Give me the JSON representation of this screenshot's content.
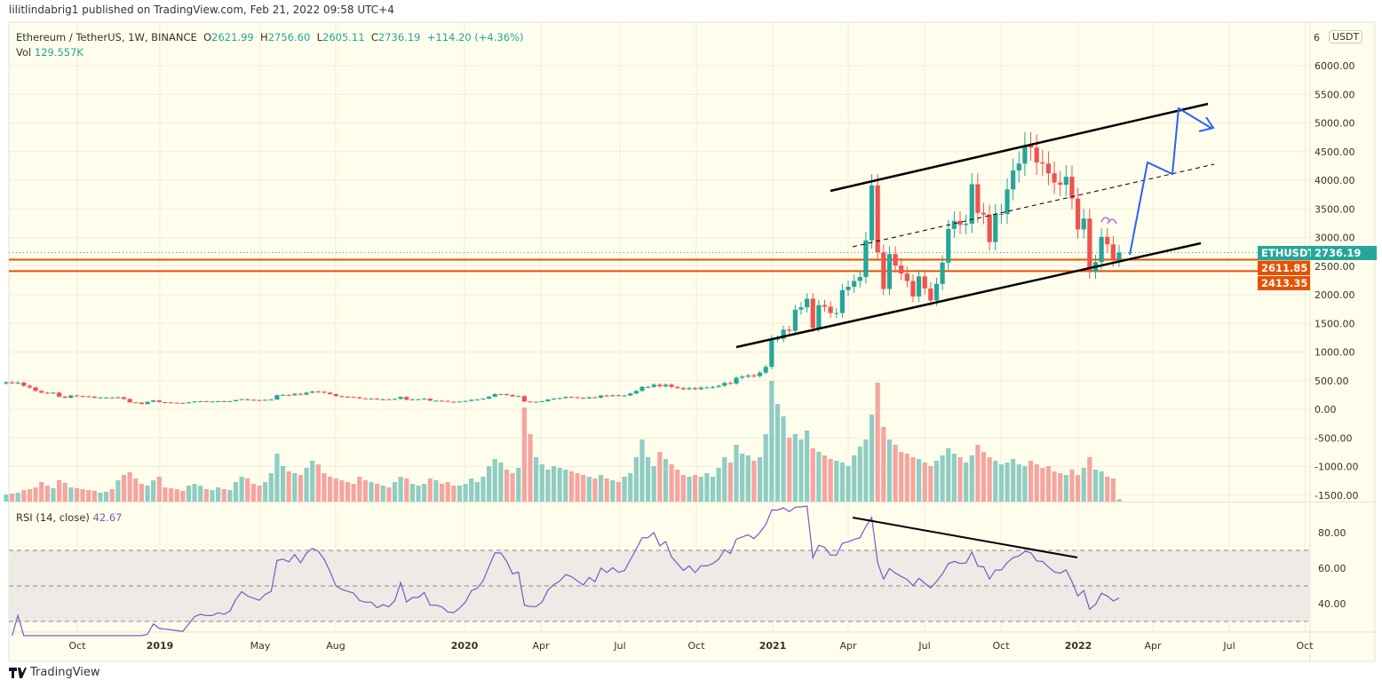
{
  "publish_line": "lilitlindabrig1 published on TradingView.com, Feb 21, 2022 09:58 UTC+4",
  "legend": {
    "symbol": "Ethereum / TetherUS, 1W, BINANCE",
    "open_label": "O",
    "open": "2621.99",
    "high_label": "H",
    "high": "2756.60",
    "low_label": "L",
    "low": "2605.11",
    "close_label": "C",
    "close": "2736.19",
    "change": "+114.20 (+4.36%)",
    "vol_label": "Vol",
    "vol": "129.557K"
  },
  "rsi_legend": {
    "label": "RSI (14, close)",
    "value": "42.67"
  },
  "currency_badge": "USDT",
  "price_axis_top_partial": "6",
  "badges": {
    "symbol": "ETHUSDT",
    "last_price": "2736.19",
    "level1": "2611.85",
    "level2": "2413.35"
  },
  "footer_logo": "TradingView",
  "colors": {
    "up": "#26a69a",
    "down": "#ef5350",
    "up_vol": "#8fcdc4",
    "down_vol": "#f5a5a1",
    "level": "#e65100",
    "rsi": "#7e57c2",
    "projection": "#2962ff",
    "background": "#fffdeb"
  },
  "chart_data": {
    "type": "candlestick",
    "interval": "1W",
    "first_week": "2018-07-09",
    "last_week": "2022-02-21",
    "first_open": 450,
    "close": [
      470,
      460,
      465,
      410,
      380,
      320,
      290,
      280,
      290,
      220,
      200,
      240,
      230,
      225,
      220,
      200,
      205,
      205,
      200,
      210,
      180,
      120,
      115,
      90,
      130,
      155,
      125,
      120,
      115,
      110,
      105,
      120,
      135,
      140,
      135,
      135,
      140,
      135,
      140,
      160,
      175,
      165,
      160,
      155,
      165,
      170,
      245,
      250,
      245,
      270,
      255,
      290,
      310,
      305,
      290,
      265,
      230,
      220,
      215,
      210,
      190,
      185,
      185,
      170,
      175,
      170,
      180,
      215,
      165,
      175,
      175,
      185,
      150,
      150,
      145,
      130,
      128,
      135,
      145,
      165,
      170,
      185,
      220,
      265,
      265,
      250,
      225,
      230,
      135,
      130,
      130,
      140,
      170,
      185,
      195,
      215,
      210,
      200,
      190,
      210,
      200,
      240,
      230,
      245,
      235,
      240,
      275,
      320,
      390,
      390,
      430,
      400,
      430,
      390,
      370,
      350,
      370,
      350,
      380,
      380,
      390,
      410,
      460,
      450,
      550,
      570,
      590,
      580,
      640,
      740,
      1230,
      1230,
      1390,
      1370,
      1740,
      1780,
      1930,
      1420,
      1820,
      1790,
      1680,
      1680,
      2080,
      2140,
      2240,
      2310,
      2950,
      3910,
      2740,
      2100,
      2710,
      2510,
      2370,
      2240,
      1970,
      2320,
      2110,
      1900,
      2190,
      2560,
      3150,
      3290,
      3220,
      3240,
      3930,
      3430,
      3400,
      2920,
      3410,
      3410,
      3840,
      4170,
      4290,
      4610,
      4570,
      4310,
      4290,
      4120,
      3960,
      3920,
      4060,
      3680,
      3140,
      3330,
      2400,
      2570,
      3010,
      2880,
      2620,
      2736.19
    ],
    "volume_k": [
      400,
      450,
      500,
      650,
      700,
      800,
      1100,
      900,
      750,
      1200,
      1050,
      800,
      750,
      700,
      650,
      600,
      500,
      550,
      700,
      1200,
      1500,
      1650,
      1300,
      1000,
      900,
      1200,
      1400,
      800,
      750,
      700,
      600,
      900,
      1000,
      900,
      700,
      650,
      800,
      700,
      650,
      1100,
      1400,
      1300,
      1000,
      900,
      1100,
      1600,
      2700,
      2000,
      1700,
      1600,
      1500,
      1900,
      2300,
      2100,
      1600,
      1400,
      1300,
      1200,
      1100,
      1000,
      1400,
      1200,
      1100,
      1000,
      900,
      800,
      1100,
      1400,
      1300,
      1000,
      900,
      1000,
      1300,
      1200,
      1000,
      1100,
      900,
      900,
      1000,
      1300,
      1100,
      1400,
      2000,
      2400,
      2200,
      1800,
      1600,
      1900,
      5300,
      3800,
      2500,
      2100,
      1800,
      2000,
      1900,
      1800,
      1700,
      1600,
      1500,
      1400,
      1300,
      1500,
      1300,
      1200,
      1100,
      1400,
      1600,
      2500,
      3500,
      2500,
      2000,
      2800,
      2400,
      2100,
      1800,
      1500,
      1400,
      1500,
      1400,
      1600,
      1400,
      1900,
      2500,
      2200,
      3200,
      2700,
      2600,
      2300,
      2500,
      3800,
      6800,
      5500,
      4800,
      3600,
      3800,
      3500,
      4000,
      3000,
      2800,
      2600,
      2400,
      2300,
      2200,
      2000,
      2600,
      3100,
      3500,
      4900,
      6700,
      4200,
      3500,
      3200,
      2800,
      2700,
      2500,
      2400,
      2200,
      2000,
      2300,
      2600,
      3000,
      2700,
      2500,
      2200,
      2600,
      3200,
      2800,
      2500,
      2300,
      2100,
      2200,
      2400,
      2100,
      2000,
      2300,
      2100,
      1900,
      2000,
      1700,
      1600,
      1500,
      1800,
      1500,
      1900,
      2500,
      1800,
      1700,
      1400,
      1300,
      129.557
    ],
    "price_axis": {
      "min": -1500,
      "max": 6000,
      "step": 500,
      "labels": [
        "6000.00",
        "5500.00",
        "5000.00",
        "4500.00",
        "4000.00",
        "3500.00",
        "3000.00",
        "2500.00",
        "2000.00",
        "1500.00",
        "1000.00",
        "500.00",
        "0.00",
        "-500.00",
        "-1000.00",
        "-1500.00"
      ]
    },
    "rsi_axis": {
      "labels": [
        "80.00",
        "60.00",
        "40.00"
      ],
      "bands": [
        30,
        50,
        70
      ]
    },
    "time_axis": [
      "Oct",
      "2019",
      "May",
      "Aug",
      "2020",
      "Apr",
      "Jul",
      "Oct",
      "2021",
      "Apr",
      "Jul",
      "Oct",
      "2022",
      "Apr",
      "Jul",
      "Oct"
    ],
    "horizontal_levels": [
      2611.85,
      2413.35
    ],
    "grid": true
  }
}
